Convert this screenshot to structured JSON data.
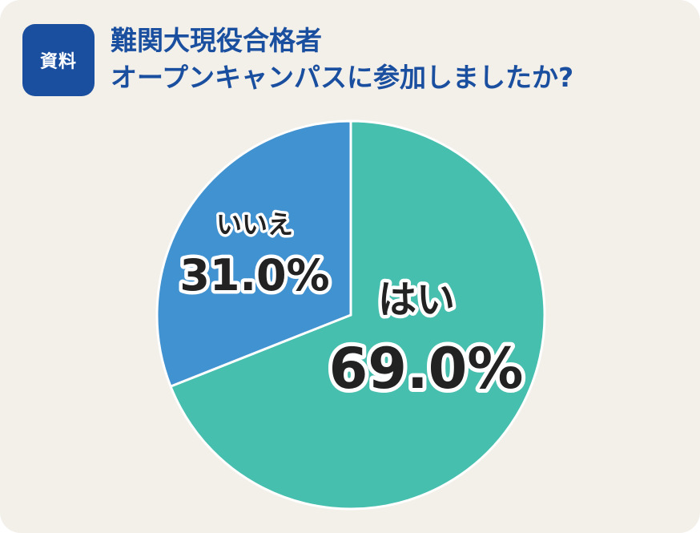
{
  "header": {
    "badge": "資料",
    "title_line1": "難関大現役合格者",
    "title_line2": "オープンキャンパスに参加しましたか?"
  },
  "colors": {
    "badge_bg": "#1a4fa0",
    "title_text": "#1a4fa0",
    "yes_slice": "#46bfae",
    "no_slice": "#4192d0",
    "label_text": "#222222"
  },
  "chart_data": {
    "type": "pie",
    "title": "難関大現役合格者 オープンキャンパスに参加しましたか?",
    "slices": [
      {
        "label": "はい",
        "value": 69.0,
        "display": "69.0%"
      },
      {
        "label": "いいえ",
        "value": 31.0,
        "display": "31.0%"
      }
    ],
    "start": "12 o'clock",
    "direction": "clockwise"
  }
}
